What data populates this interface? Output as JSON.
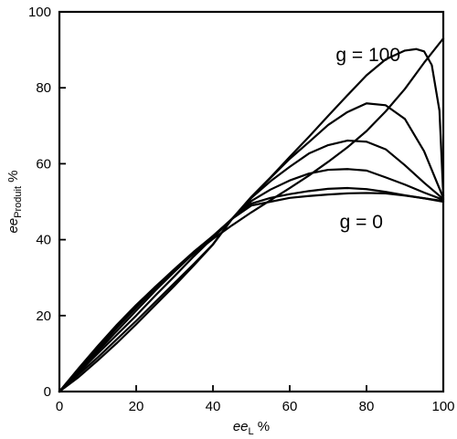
{
  "chart_data": {
    "type": "line",
    "title": "",
    "xlabel": {
      "italic": "ee",
      "sub": "L",
      "unit": " %"
    },
    "ylabel": {
      "italic": "ee",
      "sub": "Produit",
      "unit": " %"
    },
    "xlim": [
      0,
      100
    ],
    "ylim": [
      0,
      100
    ],
    "xticks": [
      "0",
      "20",
      "40",
      "60",
      "80",
      "100"
    ],
    "yticks": [
      "0",
      "20",
      "40",
      "60",
      "80",
      "100"
    ],
    "grid": false,
    "annotations": [
      {
        "text": "g = 100",
        "x": 72,
        "y": 87
      },
      {
        "text": "g = 0",
        "x": 73,
        "y": 43
      }
    ],
    "series": [
      {
        "x": [
          0,
          5,
          10,
          15,
          20,
          25,
          30,
          35,
          40,
          45,
          50,
          55,
          60,
          65,
          70,
          75,
          80,
          85,
          90,
          95,
          100
        ],
        "y": [
          0,
          6.1,
          12,
          17.6,
          22.8,
          27.6,
          32.1,
          36.3,
          40.2,
          43.8,
          47.2,
          50.4,
          53.6,
          56.9,
          60.5,
          64.3,
          68.6,
          73.8,
          79.7,
          86.6,
          93
        ]
      },
      {
        "x": [
          0,
          5,
          10,
          15,
          20,
          25,
          30,
          35,
          40,
          45,
          50,
          55,
          60,
          65,
          70,
          75,
          80,
          85,
          90,
          95,
          100
        ],
        "y": [
          0,
          5.9,
          11.7,
          17.3,
          22.6,
          27.6,
          32.3,
          36.8,
          40.9,
          45.5,
          49,
          50,
          51,
          51.5,
          51.9,
          52.2,
          52.3,
          52.2,
          51.6,
          50.9,
          50
        ]
      },
      {
        "x": [
          0,
          5,
          10,
          15,
          20,
          25,
          30,
          35,
          40,
          45,
          50,
          55,
          60,
          65,
          70,
          75,
          80,
          85,
          90,
          95,
          100
        ],
        "y": [
          0,
          5.6,
          11.2,
          16.8,
          22.1,
          27.3,
          32.2,
          36.8,
          41,
          45.5,
          49.5,
          51,
          52,
          52.8,
          53.4,
          53.6,
          53.3,
          52.6,
          51.7,
          50.9,
          50.2
        ]
      },
      {
        "x": [
          0,
          5,
          10,
          15,
          20,
          25,
          30,
          35,
          40,
          45,
          50,
          55,
          60,
          65,
          70,
          75,
          80,
          85,
          90,
          95,
          100
        ],
        "y": [
          0,
          5.3,
          10.6,
          16,
          21.3,
          26.6,
          31.6,
          36.4,
          40.9,
          45.5,
          50.2,
          53.2,
          55.6,
          57.4,
          58.4,
          58.6,
          58.2,
          56.4,
          54.5,
          52.4,
          50.5
        ]
      },
      {
        "x": [
          0,
          5,
          10,
          15,
          20,
          25,
          30,
          35,
          40,
          45,
          50,
          55,
          60,
          65,
          70,
          75,
          80,
          85,
          90,
          95,
          100
        ],
        "y": [
          0,
          5,
          10,
          15,
          20,
          25.3,
          30.4,
          35.6,
          40.5,
          45.5,
          51,
          55.4,
          59.2,
          62.7,
          64.9,
          66.1,
          65.8,
          63.8,
          59.6,
          55,
          50.7
        ]
      },
      {
        "x": [
          0,
          5,
          10,
          15,
          20,
          25,
          30,
          35,
          40,
          45,
          50,
          55,
          60,
          65,
          70,
          75,
          80,
          85,
          90,
          95,
          100
        ],
        "y": [
          0,
          4.5,
          9,
          13.8,
          18.6,
          23.6,
          28.6,
          33.6,
          38.8,
          45.5,
          51.2,
          56.3,
          61.3,
          65.7,
          70.2,
          73.6,
          75.9,
          75.4,
          71.8,
          63.3,
          51
        ]
      },
      {
        "x": [
          0,
          5,
          10,
          15,
          20,
          25,
          30,
          35,
          40,
          45,
          50,
          55,
          60,
          65,
          70,
          75,
          80,
          85,
          90,
          93,
          95,
          97,
          99,
          100
        ],
        "y": [
          0,
          3.8,
          8.2,
          12.8,
          17.7,
          22.8,
          27.9,
          33.2,
          38.7,
          45.5,
          51.3,
          56.4,
          61.8,
          67.1,
          72.6,
          78,
          83.3,
          87.5,
          89.8,
          90.2,
          89.6,
          86,
          74,
          51.5
        ]
      }
    ]
  }
}
